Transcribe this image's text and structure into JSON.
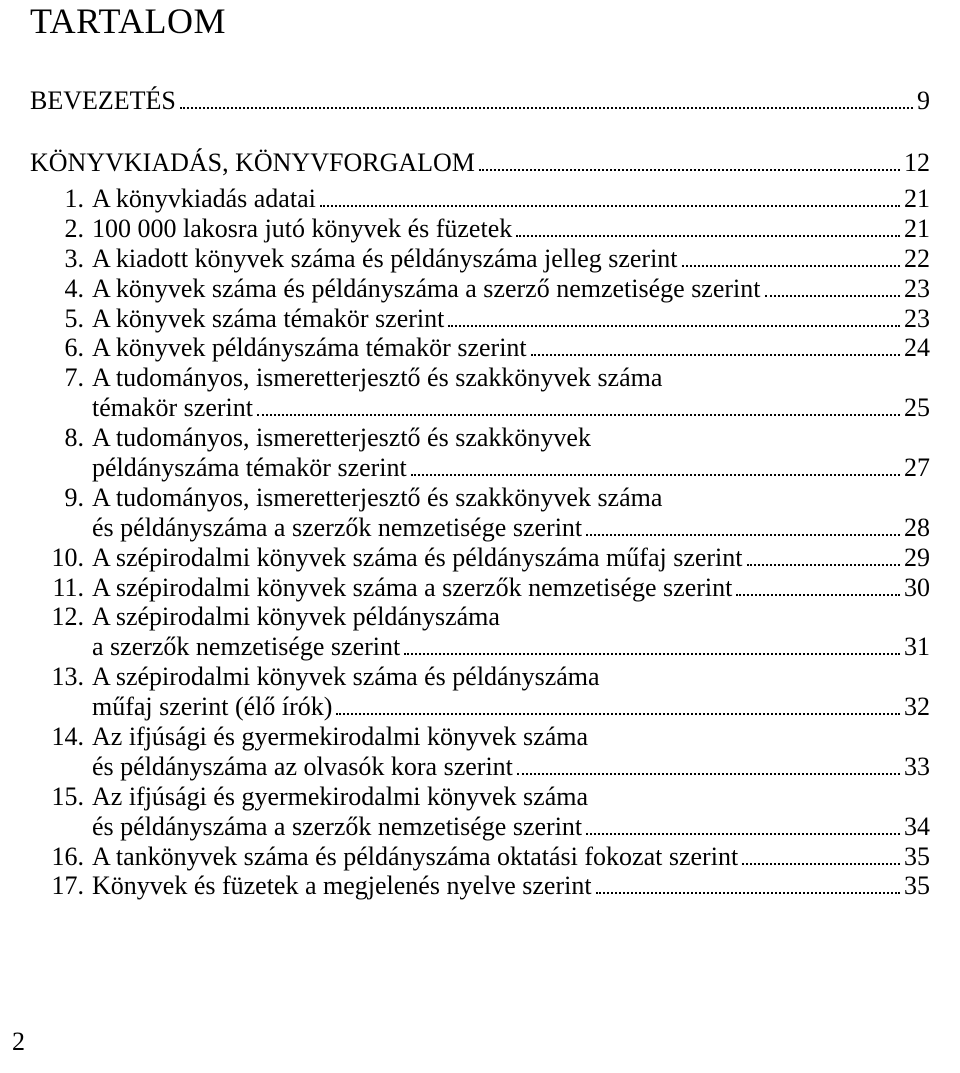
{
  "title": "TARTALOM",
  "footer_page_number": "2",
  "colors": {
    "text": "#000000",
    "background": "#ffffff"
  },
  "typography": {
    "family": "Times New Roman",
    "title_fontsize_pt": 27,
    "body_fontsize_pt": 20
  },
  "sections": {
    "bevezetes": {
      "label": "BEVEZETÉS",
      "page": "9"
    },
    "konyvkiadas": {
      "label": "KÖNYVKIADÁS, KÖNYVFORGALOM",
      "page": "12"
    }
  },
  "entries": [
    {
      "num": "1.",
      "lines": [
        "A könyvkiadás adatai"
      ],
      "page": "21"
    },
    {
      "num": "2.",
      "lines": [
        "100 000 lakosra jutó könyvek és füzetek"
      ],
      "page": "21"
    },
    {
      "num": "3.",
      "lines": [
        "A kiadott könyvek száma és példányszáma jelleg szerint"
      ],
      "page": "22"
    },
    {
      "num": "4.",
      "lines": [
        "A könyvek száma és példányszáma a szerző nemzetisége szerint"
      ],
      "page": "23"
    },
    {
      "num": "5.",
      "lines": [
        "A könyvek száma témakör szerint"
      ],
      "page": "23"
    },
    {
      "num": "6.",
      "lines": [
        "A könyvek példányszáma témakör szerint"
      ],
      "page": "24"
    },
    {
      "num": "7.",
      "lines": [
        "A tudományos, ismeretterjesztő és szakkönyvek száma",
        "témakör szerint"
      ],
      "page": "25"
    },
    {
      "num": "8.",
      "lines": [
        "A tudományos, ismeretterjesztő és szakkönyvek",
        "példányszáma témakör szerint"
      ],
      "page": "27"
    },
    {
      "num": "9.",
      "lines": [
        "A tudományos, ismeretterjesztő és szakkönyvek száma",
        "és példányszáma a szerzők nemzetisége szerint"
      ],
      "page": "28"
    },
    {
      "num": "10.",
      "lines": [
        "A szépirodalmi könyvek száma és példányszáma műfaj szerint"
      ],
      "page": "29"
    },
    {
      "num": "11.",
      "lines": [
        "A szépirodalmi könyvek száma a szerzők nemzetisége szerint"
      ],
      "page": "30"
    },
    {
      "num": "12.",
      "lines": [
        "A szépirodalmi könyvek példányszáma",
        "a szerzők nemzetisége szerint"
      ],
      "page": "31"
    },
    {
      "num": "13.",
      "lines": [
        "A szépirodalmi könyvek száma és példányszáma",
        "műfaj szerint (élő írók)"
      ],
      "page": "32"
    },
    {
      "num": "14.",
      "lines": [
        "Az ifjúsági és gyermekirodalmi könyvek száma",
        "és példányszáma az olvasók kora szerint"
      ],
      "page": "33"
    },
    {
      "num": "15.",
      "lines": [
        "Az ifjúsági és gyermekirodalmi könyvek száma",
        "és példányszáma a szerzők nemzetisége szerint"
      ],
      "page": "34"
    },
    {
      "num": "16.",
      "lines": [
        "A tankönyvek száma és példányszáma oktatási fokozat szerint"
      ],
      "page": "35"
    },
    {
      "num": "17.",
      "lines": [
        "Könyvek és füzetek a megjelenés nyelve szerint"
      ],
      "page": "35"
    }
  ]
}
